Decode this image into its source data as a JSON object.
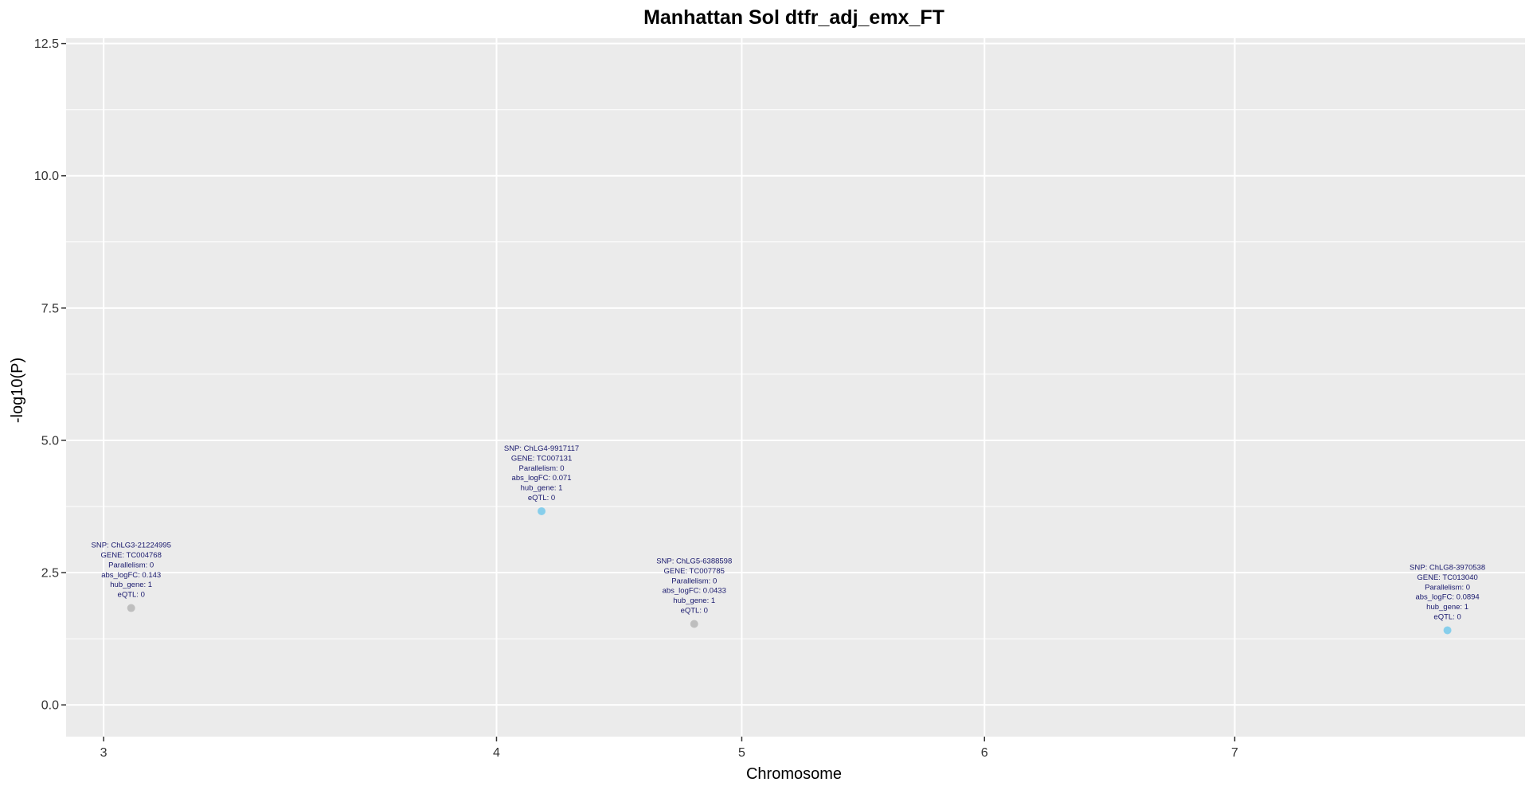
{
  "chart_data": {
    "type": "scatter",
    "title": "Manhattan Sol dtfr_adj_emx_FT",
    "xlabel": "Chromosome",
    "ylabel": "-log10(P)",
    "ylim": [
      -0.6,
      12.6
    ],
    "xlim": [
      2.85,
      8.68
    ],
    "y_ticks": [
      {
        "value": 0.0,
        "label": "0.0"
      },
      {
        "value": 2.5,
        "label": "2.5"
      },
      {
        "value": 5.0,
        "label": "5.0"
      },
      {
        "value": 7.5,
        "label": "7.5"
      },
      {
        "value": 10.0,
        "label": "10.0"
      },
      {
        "value": 12.5,
        "label": "12.5"
      }
    ],
    "x_ticks": [
      {
        "value": 3,
        "label": "3"
      },
      {
        "value": 4.57,
        "label": "4"
      },
      {
        "value": 5.55,
        "label": "5"
      },
      {
        "value": 6.52,
        "label": "6"
      },
      {
        "value": 7.52,
        "label": "7"
      }
    ],
    "grid": true,
    "legend": "none",
    "points": [
      {
        "x": 3.11,
        "y": 1.83,
        "color": "#bebebe",
        "annotation": [
          "SNP:  ChLG3-21224995",
          "GENE:  TC004768",
          "Parallelism:  0",
          "abs_logFC:  0.143",
          "hub_gene:  1",
          "eQTL:  0"
        ]
      },
      {
        "x": 4.75,
        "y": 3.66,
        "color": "#87ceeb",
        "annotation": [
          "SNP:  ChLG4-9917117",
          "GENE:  TC007131",
          "Parallelism:  0",
          "abs_logFC:  0.071",
          "hub_gene:  1",
          "eQTL:  0"
        ]
      },
      {
        "x": 5.36,
        "y": 1.53,
        "color": "#bebebe",
        "annotation": [
          "SNP:  ChLG5-6388598",
          "GENE:  TC007785",
          "Parallelism:  0",
          "abs_logFC:  0.0433",
          "hub_gene:  1",
          "eQTL:  0"
        ]
      },
      {
        "x": 8.37,
        "y": 1.41,
        "color": "#87ceeb",
        "annotation": [
          "SNP:  ChLG8-3970538",
          "GENE:  TC013040",
          "Parallelism:  0",
          "abs_logFC:  0.0894",
          "hub_gene:  1",
          "eQTL:  0"
        ]
      }
    ],
    "colors": {
      "panel_background": "#ebebeb",
      "grid": "#ffffff",
      "annotation_text": "#1a1a6e"
    }
  }
}
